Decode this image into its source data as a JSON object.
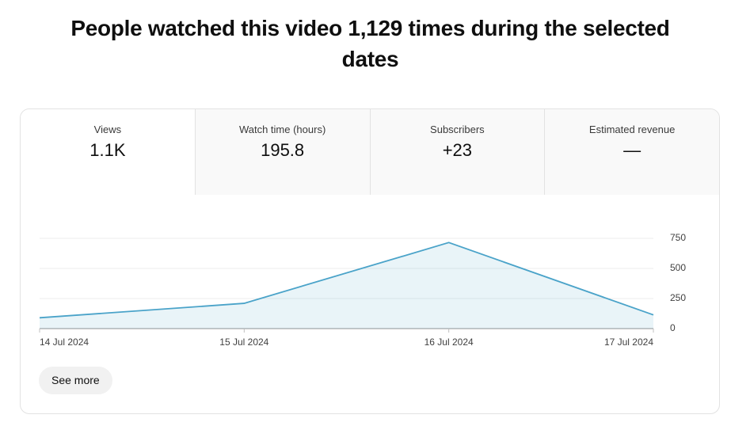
{
  "header": {
    "title": "People watched this video 1,129 times during the selected dates"
  },
  "tabs": [
    {
      "label": "Views",
      "value": "1.1K"
    },
    {
      "label": "Watch time (hours)",
      "value": "195.8"
    },
    {
      "label": "Subscribers",
      "value": "+23"
    },
    {
      "label": "Estimated revenue",
      "value": "—"
    }
  ],
  "chart_data": {
    "type": "area",
    "categories": [
      "14 Jul 2024",
      "15 Jul 2024",
      "16 Jul 2024",
      "17 Jul 2024"
    ],
    "series": [
      {
        "name": "Views",
        "color": "#4aa3c9",
        "values": [
          90,
          210,
          715,
          114
        ]
      }
    ],
    "ylim": [
      0,
      750
    ],
    "yticks": [
      0,
      250,
      500,
      750
    ],
    "grid": true
  },
  "button": "See more"
}
